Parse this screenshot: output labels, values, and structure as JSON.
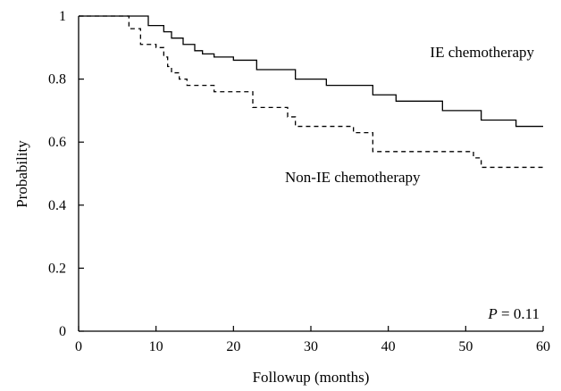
{
  "chart_data": {
    "type": "line",
    "subtype": "kaplan-meier step",
    "xlabel": "Followup (months)",
    "ylabel": "Probability",
    "xlim": [
      0,
      60
    ],
    "ylim": [
      0,
      1
    ],
    "xticks": [
      "0",
      "10",
      "20",
      "30",
      "40",
      "50",
      "60"
    ],
    "yticks": [
      "0",
      "0.2",
      "0.4",
      "0.6",
      "0.8",
      "1"
    ],
    "grid": false,
    "annotation": {
      "italic": "P",
      "text": " = 0.11"
    },
    "series": [
      {
        "name": "IE chemotherapy",
        "line_style": "solid",
        "x": [
          0,
          9,
          11,
          12,
          13.5,
          15,
          16,
          17.5,
          20,
          23,
          28,
          32,
          38,
          41,
          47,
          52,
          56.5,
          60
        ],
        "y": [
          1.0,
          0.97,
          0.95,
          0.93,
          0.91,
          0.89,
          0.88,
          0.87,
          0.86,
          0.83,
          0.8,
          0.78,
          0.75,
          0.73,
          0.7,
          0.67,
          0.65,
          0.65
        ]
      },
      {
        "name": "Non-IE chemotherapy",
        "line_style": "dashed",
        "x": [
          0,
          6.5,
          8,
          10,
          11,
          11.5,
          12,
          13,
          14,
          17.5,
          22.5,
          27,
          28,
          35.5,
          38,
          51,
          52,
          60
        ],
        "y": [
          1.0,
          0.96,
          0.91,
          0.9,
          0.87,
          0.84,
          0.82,
          0.8,
          0.78,
          0.76,
          0.71,
          0.68,
          0.65,
          0.63,
          0.57,
          0.55,
          0.52,
          0.52
        ]
      }
    ]
  }
}
